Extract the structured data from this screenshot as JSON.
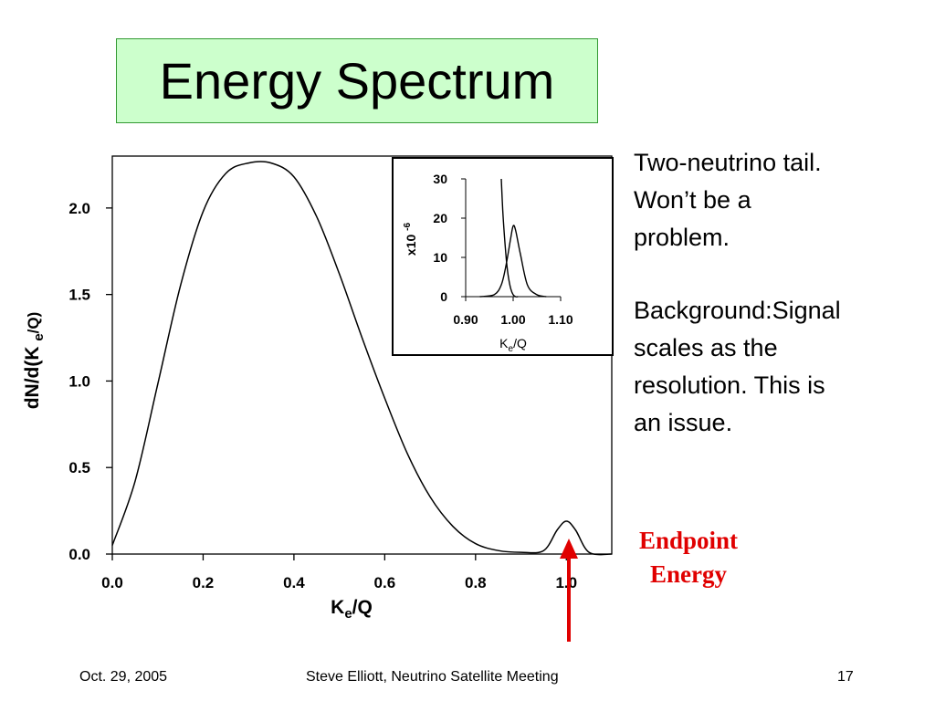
{
  "slide": {
    "title": "Energy Spectrum",
    "note1": [
      "Two-neutrino tail.",
      "Won’t be a",
      "problem."
    ],
    "note2": [
      "Background:Signal",
      "scales as the",
      "resolution. This is",
      "an issue."
    ],
    "endpoint_label": [
      "Endpoint",
      "Energy"
    ],
    "footer": {
      "date": "Oct. 29, 2005",
      "center": "Steve Elliott, Neutrino Satellite Meeting",
      "page": "17"
    },
    "colors": {
      "title_bg": "#ccffcc",
      "title_border": "#339933",
      "endpoint": "#e00000"
    }
  },
  "chart_data": [
    {
      "type": "line",
      "ylabel": "dN/d(K e/Q)",
      "xlabel": "Ke/Q",
      "xlim": [
        0.0,
        1.1
      ],
      "ylim": [
        0.0,
        2.3
      ],
      "x_ticks": [
        "0.0",
        "0.2",
        "0.4",
        "0.6",
        "0.8",
        "1.0"
      ],
      "y_ticks": [
        "0.0",
        "0.5",
        "1.0",
        "1.5",
        "2.0"
      ],
      "series": [
        {
          "x": [
            0.0,
            0.05,
            0.1,
            0.15,
            0.2,
            0.25,
            0.3,
            0.35,
            0.4,
            0.45,
            0.5,
            0.55,
            0.6,
            0.65,
            0.7,
            0.75,
            0.8,
            0.85,
            0.9,
            0.95,
            0.98,
            1.0,
            1.02,
            1.05,
            1.1
          ],
          "y": [
            0.05,
            0.42,
            0.98,
            1.55,
            1.98,
            2.2,
            2.26,
            2.26,
            2.18,
            1.95,
            1.62,
            1.25,
            0.9,
            0.58,
            0.33,
            0.16,
            0.06,
            0.02,
            0.01,
            0.02,
            0.14,
            0.19,
            0.14,
            0.01,
            0.0
          ]
        }
      ],
      "grid": false
    },
    {
      "type": "line",
      "ylabel": "x10 -6",
      "xlabel": "Ke/Q",
      "xlim": [
        0.9,
        1.1
      ],
      "ylim": [
        0,
        30
      ],
      "x_ticks": [
        "0.90",
        "1.00",
        "1.10"
      ],
      "y_ticks": [
        "0",
        "10",
        "20",
        "30"
      ],
      "series": [
        {
          "x": [
            0.975,
            0.978,
            0.982,
            0.986,
            0.99,
            0.995,
            1.0,
            1.005,
            1.01
          ],
          "y": [
            30,
            22,
            15,
            9,
            5,
            2,
            0.5,
            0,
            0
          ]
        },
        {
          "x": [
            0.93,
            0.96,
            0.975,
            0.985,
            0.995,
            1.0,
            1.005,
            1.015,
            1.03,
            1.05,
            1.07
          ],
          "y": [
            0,
            0.5,
            3,
            8,
            15,
            18,
            17,
            11,
            3,
            0.5,
            0
          ]
        }
      ],
      "grid": false
    }
  ]
}
